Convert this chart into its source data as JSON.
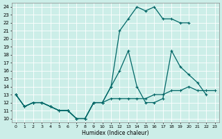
{
  "xlabel": "Humidex (Indice chaleur)",
  "bg_color": "#cceee8",
  "grid_color": "#aaddcc",
  "line_color": "#006666",
  "xlim": [
    -0.5,
    23.5
  ],
  "ylim": [
    9.5,
    24.5
  ],
  "xticks": [
    0,
    1,
    2,
    3,
    4,
    5,
    6,
    7,
    8,
    9,
    10,
    11,
    12,
    13,
    14,
    15,
    16,
    17,
    18,
    19,
    20,
    21,
    22,
    23
  ],
  "yticks": [
    10,
    11,
    12,
    13,
    14,
    15,
    16,
    17,
    18,
    19,
    20,
    21,
    22,
    23,
    24
  ],
  "series": [
    {
      "x": [
        0,
        1,
        2,
        3,
        4,
        5,
        6,
        7,
        8,
        9,
        10,
        11,
        12,
        13,
        14,
        15,
        16,
        17,
        18,
        19,
        20
      ],
      "y": [
        13,
        11.5,
        12,
        12,
        11.5,
        11,
        11,
        10,
        10,
        12,
        12,
        14,
        21,
        22.5,
        24,
        23.5,
        24,
        22.5,
        22.5,
        22,
        22
      ]
    },
    {
      "x": [
        0,
        1,
        2,
        3,
        4,
        5,
        6,
        7,
        8,
        9,
        10,
        11,
        12,
        13,
        14,
        15,
        16,
        17,
        18,
        19,
        20,
        21,
        22
      ],
      "y": [
        13,
        11.5,
        12,
        12,
        11.5,
        11,
        11,
        10,
        10,
        12,
        12,
        14,
        16,
        18.5,
        14,
        12,
        12,
        12.5,
        18.5,
        16.5,
        15.5,
        14.5,
        13
      ]
    },
    {
      "x": [
        0,
        1,
        2,
        3,
        4,
        5,
        6,
        7,
        8,
        9,
        10,
        11,
        12,
        13,
        14,
        15,
        16,
        17,
        18,
        19,
        20,
        21,
        22,
        23
      ],
      "y": [
        13,
        11.5,
        12,
        12,
        11.5,
        11,
        11,
        10,
        10,
        12,
        12,
        12.5,
        12.5,
        12.5,
        12.5,
        12.5,
        13,
        13,
        13.5,
        13.5,
        14,
        13.5,
        13.5,
        13.5
      ]
    }
  ]
}
